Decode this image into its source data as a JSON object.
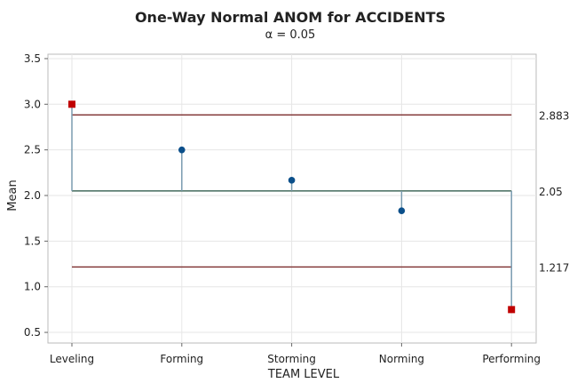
{
  "chart_data": {
    "type": "scatter",
    "title": "One-Way Normal ANOM for ACCIDENTS",
    "subtitle": "α = 0.05",
    "xlabel": "TEAM LEVEL",
    "ylabel": "Mean",
    "categories": [
      "Leveling",
      "Forming",
      "Storming",
      "Norming",
      "Performing"
    ],
    "values": [
      3.0,
      2.5,
      2.167,
      1.833,
      0.75
    ],
    "out_of_limits": [
      true,
      false,
      false,
      false,
      true
    ],
    "ylim": [
      0.4,
      3.58
    ],
    "yticks": [
      0.5,
      1.0,
      1.5,
      2.0,
      2.5,
      3.0,
      3.5
    ],
    "ytick_labels": [
      "0.5",
      "1.0",
      "1.5",
      "2.0",
      "2.5",
      "3.0",
      "3.5"
    ],
    "center_line": {
      "value": 2.05,
      "label": "2.05"
    },
    "upper_limit": {
      "value": 2.883,
      "label": "2.883"
    },
    "lower_limit": {
      "value": 1.217,
      "label": "1.217"
    },
    "grid": true,
    "colors": {
      "point": "#0b4f8a",
      "out_point": "#c00000",
      "center": "#1f4e3d",
      "limit": "#7b2d2d",
      "stem": "#7a9cb0",
      "grid": "#e6e6e6"
    }
  }
}
